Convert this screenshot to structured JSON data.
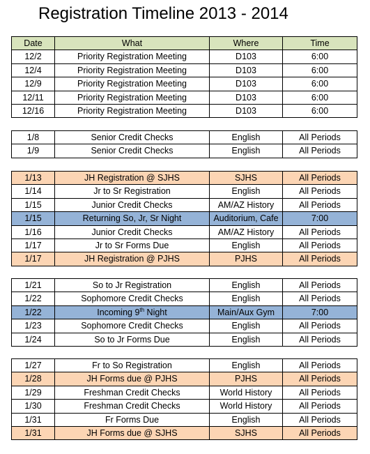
{
  "title": "Registration Timeline 2013 - 2014",
  "header": {
    "cells": [
      "Date",
      "What",
      "Where",
      "Time"
    ],
    "fill": "#d8e4bc"
  },
  "groups": [
    {
      "rows": [
        {
          "cells": [
            "12/2",
            "Priority Registration Meeting",
            "D103",
            "6:00"
          ]
        },
        {
          "cells": [
            "12/4",
            "Priority Registration Meeting",
            "D103",
            "6:00"
          ]
        },
        {
          "cells": [
            "12/9",
            "Priority Registration Meeting",
            "D103",
            "6:00"
          ]
        },
        {
          "cells": [
            "12/11",
            "Priority Registration Meeting",
            "D103",
            "6:00"
          ]
        },
        {
          "cells": [
            "12/16",
            "Priority Registration Meeting",
            "D103",
            "6:00"
          ]
        }
      ]
    },
    {
      "rows": [
        {
          "cells": [
            "1/8",
            "Senior Credit Checks",
            "English",
            "All Periods"
          ]
        },
        {
          "cells": [
            "1/9",
            "Senior Credit Checks",
            "English",
            "All Periods"
          ]
        }
      ]
    },
    {
      "rows": [
        {
          "cells": [
            "1/13",
            "JH Registration @ SJHS",
            "SJHS",
            "All Periods"
          ],
          "fill": "#fcd5b4"
        },
        {
          "cells": [
            "1/14",
            "Jr to Sr Registration",
            "English",
            "All Periods"
          ]
        },
        {
          "cells": [
            "1/15",
            "Junior Credit Checks",
            "AM/AZ History",
            "All Periods"
          ]
        },
        {
          "cells": [
            "1/15",
            "Returning So, Jr, Sr Night",
            "Auditorium, Cafe",
            "7:00"
          ],
          "fill": "#95b3d7"
        },
        {
          "cells": [
            "1/16",
            "Junior Credit Checks",
            "AM/AZ History",
            "All Periods"
          ]
        },
        {
          "cells": [
            "1/17",
            "Jr to Sr Forms Due",
            "English",
            "All Periods"
          ]
        },
        {
          "cells": [
            "1/17",
            "JH Registration @ PJHS",
            "PJHS",
            "All Periods"
          ],
          "fill": "#fcd5b4"
        }
      ]
    },
    {
      "rows": [
        {
          "cells": [
            "1/21",
            "So to Jr Registration",
            "English",
            "All Periods"
          ]
        },
        {
          "cells": [
            "1/22",
            "Sophomore Credit Checks",
            "English",
            "All Periods"
          ]
        },
        {
          "cells": [
            "1/22",
            {
              "text": "Incoming 9",
              "sup": "th",
              "after": " Night"
            },
            "Main/Aux Gym",
            "7:00"
          ],
          "fill": "#95b3d7"
        },
        {
          "cells": [
            "1/23",
            "Sophomore Credit Checks",
            "English",
            "All Periods"
          ]
        },
        {
          "cells": [
            "1/24",
            "So to Jr Forms Due",
            "English",
            "All Periods"
          ]
        }
      ]
    },
    {
      "rows": [
        {
          "cells": [
            "1/27",
            "Fr to So Registration",
            "English",
            "All Periods"
          ]
        },
        {
          "cells": [
            "1/28",
            "JH Forms due @ PJHS",
            "PJHS",
            "All Periods"
          ],
          "fill": "#fcd5b4"
        },
        {
          "cells": [
            "1/29",
            "Freshman Credit Checks",
            "World History",
            "All Periods"
          ]
        },
        {
          "cells": [
            "1/30",
            "Freshman Credit Checks",
            "World History",
            "All Periods"
          ]
        },
        {
          "cells": [
            "1/31",
            "Fr Forms Due",
            "English",
            "All Periods"
          ]
        },
        {
          "cells": [
            "1/31",
            "JH Forms due @ SJHS",
            "SJHS",
            "All Periods"
          ],
          "fill": "#fcd5b4"
        }
      ]
    }
  ]
}
